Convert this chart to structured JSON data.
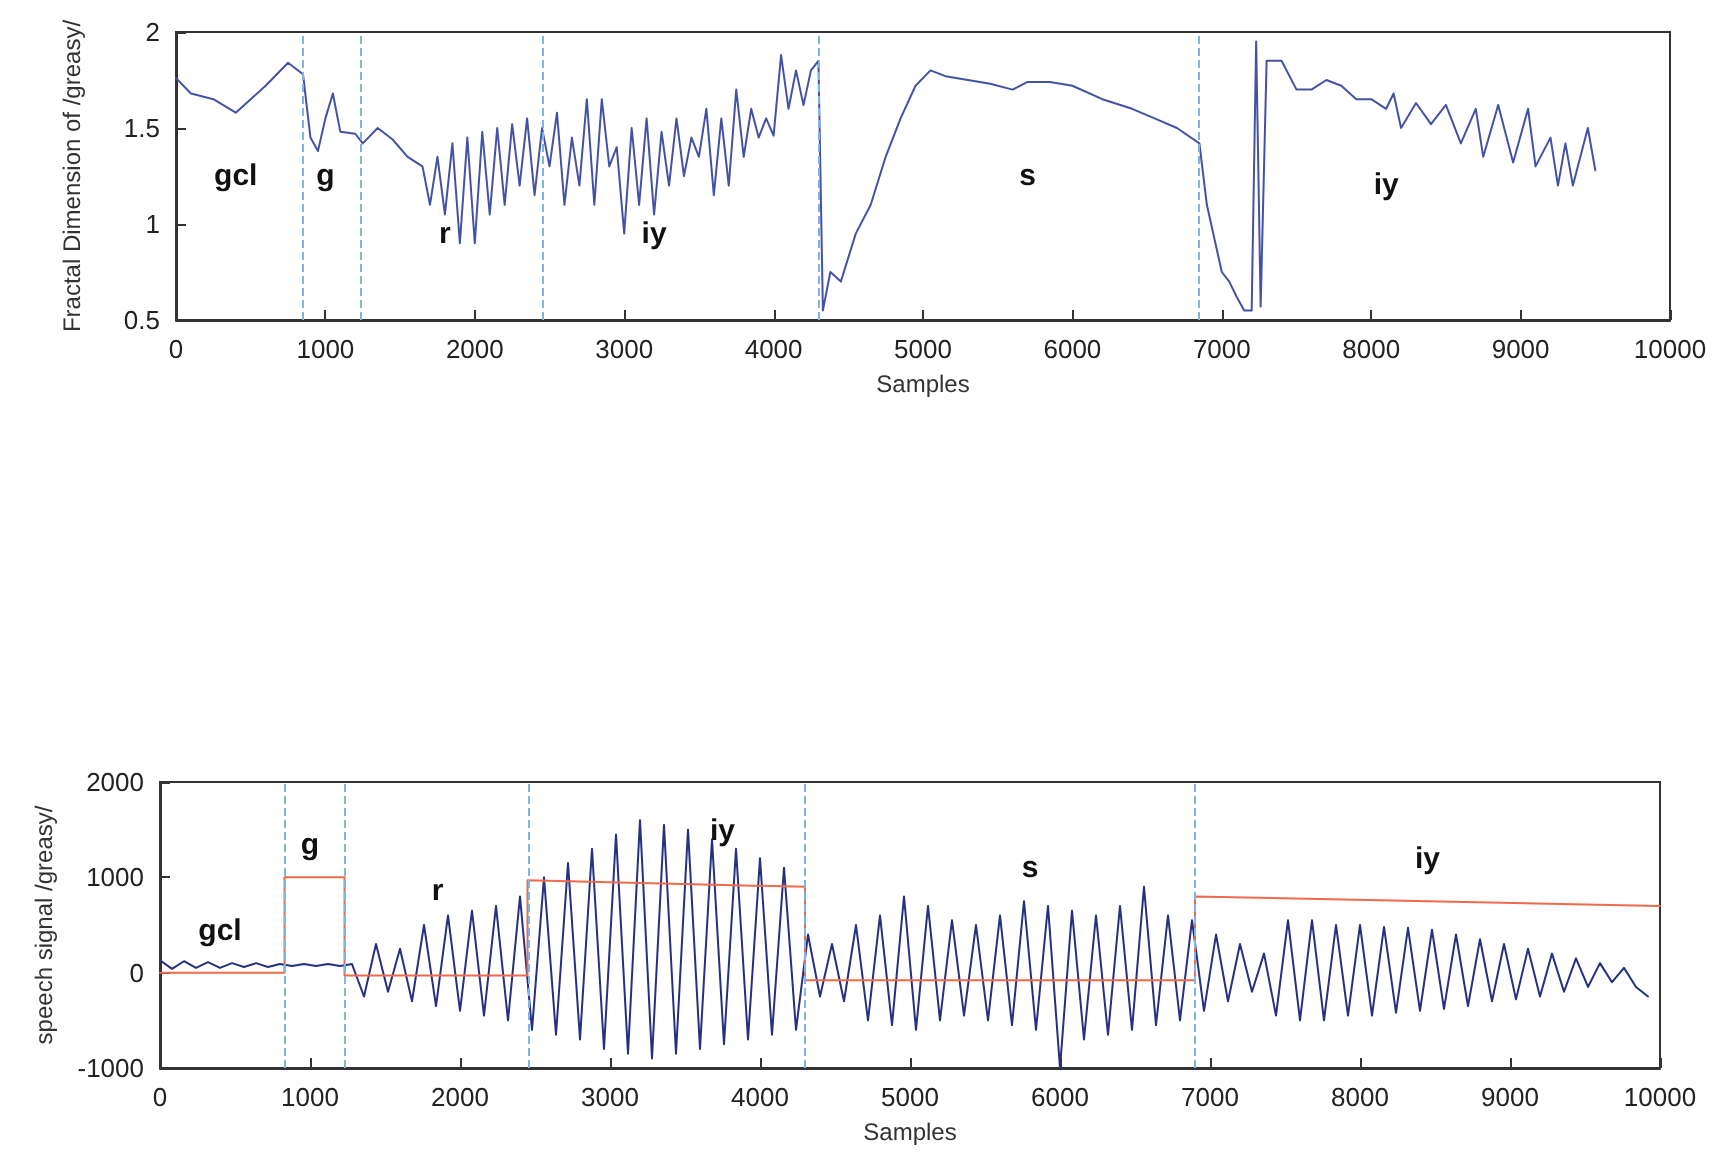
{
  "chart_data": [
    {
      "type": "line",
      "xlabel": "Samples",
      "ylabel": "Fractal Dimension of /greasy/",
      "xlim": [
        0,
        10000
      ],
      "xticks": [
        0,
        1000,
        2000,
        3000,
        4000,
        5000,
        6000,
        7000,
        8000,
        9000,
        10000
      ],
      "ylim": [
        0.5,
        2
      ],
      "yticks": [
        0.5,
        1,
        1.5,
        2
      ],
      "line_style": "solid",
      "series": [
        {
          "color": "#4452a6",
          "x": [
            0,
            100,
            250,
            400,
            500,
            600,
            750,
            850,
            900,
            950,
            1000,
            1050,
            1100,
            1200,
            1250,
            1350,
            1450,
            1550,
            1650,
            1700,
            1750,
            1800,
            1850,
            1900,
            1950,
            2000,
            2050,
            2100,
            2150,
            2200,
            2250,
            2300,
            2350,
            2400,
            2450,
            2500,
            2550,
            2600,
            2650,
            2700,
            2750,
            2800,
            2850,
            2900,
            2950,
            3000,
            3050,
            3100,
            3150,
            3200,
            3250,
            3300,
            3350,
            3400,
            3450,
            3500,
            3550,
            3600,
            3650,
            3700,
            3750,
            3800,
            3850,
            3900,
            3950,
            4000,
            4050,
            4100,
            4150,
            4200,
            4250,
            4300,
            4330,
            4380,
            4450,
            4550,
            4650,
            4750,
            4850,
            4950,
            5050,
            5150,
            5300,
            5450,
            5600,
            5700,
            5850,
            6000,
            6200,
            6400,
            6550,
            6700,
            6850,
            6900,
            7000,
            7050,
            7100,
            7150,
            7200,
            7230,
            7260,
            7300,
            7400,
            7500,
            7600,
            7700,
            7800,
            7900,
            8000,
            8100,
            8150,
            8200,
            8300,
            8400,
            8500,
            8600,
            8700,
            8750,
            8850,
            8950,
            9050,
            9100,
            9200,
            9250,
            9300,
            9350,
            9450,
            9500
          ],
          "values": [
            1.76,
            1.68,
            1.65,
            1.58,
            1.65,
            1.72,
            1.84,
            1.78,
            1.45,
            1.38,
            1.55,
            1.68,
            1.48,
            1.47,
            1.42,
            1.5,
            1.44,
            1.35,
            1.3,
            1.1,
            1.35,
            1.05,
            1.42,
            0.9,
            1.45,
            0.9,
            1.48,
            1.05,
            1.5,
            1.1,
            1.52,
            1.2,
            1.55,
            1.15,
            1.5,
            1.3,
            1.58,
            1.1,
            1.45,
            1.2,
            1.65,
            1.1,
            1.65,
            1.3,
            1.4,
            0.95,
            1.5,
            1.1,
            1.55,
            1.05,
            1.48,
            1.2,
            1.55,
            1.25,
            1.45,
            1.35,
            1.6,
            1.15,
            1.55,
            1.2,
            1.7,
            1.35,
            1.6,
            1.45,
            1.55,
            1.46,
            1.88,
            1.6,
            1.8,
            1.62,
            1.8,
            1.85,
            0.55,
            0.75,
            0.7,
            0.95,
            1.1,
            1.35,
            1.55,
            1.72,
            1.8,
            1.77,
            1.75,
            1.73,
            1.7,
            1.74,
            1.74,
            1.72,
            1.65,
            1.6,
            1.55,
            1.5,
            1.42,
            1.1,
            0.75,
            0.7,
            0.62,
            0.55,
            0.55,
            1.95,
            0.57,
            1.85,
            1.85,
            1.7,
            1.7,
            1.75,
            1.72,
            1.65,
            1.65,
            1.6,
            1.68,
            1.5,
            1.63,
            1.52,
            1.62,
            1.42,
            1.6,
            1.35,
            1.62,
            1.32,
            1.6,
            1.3,
            1.45,
            1.2,
            1.42,
            1.2,
            1.5,
            1.28
          ]
        }
      ],
      "ref_lines": [
        {
          "axis": "x",
          "value": 850,
          "color": "#7fb2e5",
          "line_style": "dashed"
        },
        {
          "axis": "x",
          "value": 1230,
          "color": "#7fb2e5",
          "line_style": "dashed"
        },
        {
          "axis": "x",
          "value": 2450,
          "color": "#7fb2e5",
          "line_style": "dashed"
        },
        {
          "axis": "x",
          "value": 4300,
          "color": "#7fb2e5",
          "line_style": "dashed"
        },
        {
          "axis": "x",
          "value": 6850,
          "color": "#7fb2e5",
          "line_style": "dashed"
        }
      ],
      "annotations": [
        "gcl",
        "g",
        "r",
        "iy",
        "s",
        "iy"
      ]
    },
    {
      "type": "line",
      "xlabel": "Samples",
      "ylabel": "speech signal /greasy/",
      "xlim": [
        0,
        10000
      ],
      "xticks": [
        0,
        1000,
        2000,
        3000,
        4000,
        5000,
        6000,
        7000,
        8000,
        9000,
        10000
      ],
      "ylim": [
        -1000,
        2000
      ],
      "yticks": [
        -1000,
        0,
        1000,
        2000
      ],
      "line_style": "solid",
      "series": [
        {
          "color": "#25307f",
          "x": [
            0,
            80,
            160,
            240,
            320,
            400,
            480,
            560,
            640,
            720,
            800,
            880,
            960,
            1040,
            1120,
            1200,
            1280,
            1360,
            1440,
            1520,
            1600,
            1680,
            1760,
            1840,
            1920,
            2000,
            2080,
            2160,
            2240,
            2320,
            2400,
            2480,
            2560,
            2640,
            2720,
            2800,
            2880,
            2960,
            3040,
            3120,
            3200,
            3280,
            3360,
            3440,
            3520,
            3600,
            3680,
            3760,
            3840,
            3920,
            4000,
            4080,
            4160,
            4240,
            4320,
            4400,
            4480,
            4560,
            4640,
            4720,
            4800,
            4880,
            4960,
            5040,
            5120,
            5200,
            5280,
            5360,
            5440,
            5520,
            5600,
            5680,
            5760,
            5840,
            5920,
            6000,
            6080,
            6160,
            6240,
            6320,
            6400,
            6480,
            6560,
            6640,
            6720,
            6800,
            6880,
            6960,
            7040,
            7120,
            7200,
            7280,
            7360,
            7440,
            7520,
            7600,
            7680,
            7760,
            7840,
            7920,
            8000,
            8080,
            8160,
            8240,
            8320,
            8400,
            8480,
            8560,
            8640,
            8720,
            8800,
            8880,
            8960,
            9040,
            9120,
            9200,
            9280,
            9360,
            9440,
            9520,
            9600,
            9680,
            9760,
            9840,
            9920
          ],
          "values": [
            130,
            40,
            120,
            50,
            110,
            50,
            100,
            60,
            100,
            60,
            90,
            70,
            90,
            70,
            90,
            70,
            90,
            -250,
            300,
            -200,
            250,
            -300,
            500,
            -350,
            600,
            -400,
            650,
            -450,
            700,
            -500,
            800,
            -600,
            1000,
            -650,
            1150,
            -700,
            1300,
            -800,
            1450,
            -850,
            1600,
            -900,
            1550,
            -850,
            1500,
            -800,
            1400,
            -750,
            1300,
            -700,
            1200,
            -650,
            1100,
            -600,
            400,
            -250,
            300,
            -300,
            500,
            -500,
            600,
            -550,
            800,
            -600,
            700,
            -500,
            550,
            -450,
            500,
            -500,
            600,
            -550,
            750,
            -600,
            700,
            -1000,
            650,
            -700,
            600,
            -650,
            700,
            -600,
            900,
            -550,
            600,
            -500,
            550,
            -400,
            400,
            -300,
            300,
            -200,
            200,
            -450,
            550,
            -500,
            550,
            -500,
            500,
            -450,
            500,
            -450,
            480,
            -420,
            470,
            -400,
            450,
            -380,
            400,
            -350,
            350,
            -300,
            300,
            -280,
            250,
            -250,
            200,
            -200,
            150,
            -150,
            100,
            -100,
            50,
            -150,
            -250
          ]
        },
        {
          "color": "#ee6a4a",
          "x": [
            0,
            830,
            830,
            1230,
            1230,
            2450,
            2450,
            4300,
            4300,
            6900,
            6900,
            10000
          ],
          "values": [
            0,
            0,
            1000,
            1000,
            -30,
            -30,
            970,
            900,
            -80,
            -80,
            800,
            700
          ]
        }
      ],
      "ref_lines": [
        {
          "axis": "x",
          "value": 830,
          "color": "#7fb2e5",
          "line_style": "dashed"
        },
        {
          "axis": "x",
          "value": 1230,
          "color": "#7fb2e5",
          "line_style": "dashed"
        },
        {
          "axis": "x",
          "value": 2450,
          "color": "#7fb2e5",
          "line_style": "dashed"
        },
        {
          "axis": "x",
          "value": 4300,
          "color": "#7fb2e5",
          "line_style": "dashed"
        },
        {
          "axis": "x",
          "value": 6900,
          "color": "#7fb2e5",
          "line_style": "dashed"
        }
      ],
      "annotations": [
        "gcl",
        "g",
        "r",
        "iy",
        "s",
        "iy"
      ]
    }
  ]
}
